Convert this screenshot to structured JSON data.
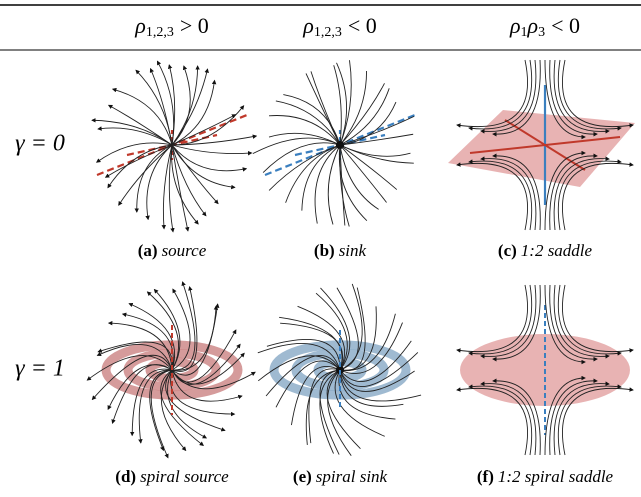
{
  "headers": [
    [
      "ρ",
      "1,2,3",
      "> 0"
    ],
    [
      "ρ",
      "1,2,3",
      "< 0"
    ],
    [
      "ρ",
      "1",
      "ρ",
      "3",
      "< 0"
    ]
  ],
  "rows": [
    {
      "label": "γ = 0",
      "captions": [
        {
          "label": "(a)",
          "text": "source"
        },
        {
          "label": "(b)",
          "text": "sink"
        },
        {
          "label": "(c)",
          "text": "1:2 saddle"
        }
      ]
    },
    {
      "label": "γ = 1",
      "captions": [
        {
          "label": "(d)",
          "text": "spiral source"
        },
        {
          "label": "(e)",
          "text": "spiral sink"
        },
        {
          "label": "(f)",
          "text": "1:2 spiral saddle"
        }
      ]
    }
  ]
}
